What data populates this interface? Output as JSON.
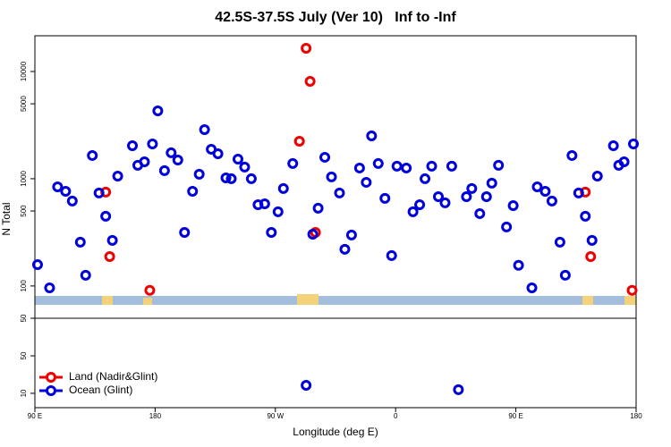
{
  "chart_data": [
    {
      "type": "scatter",
      "title": "42.5S-37.5S July (Ver 10)   Inf to -Inf",
      "y_label": "N Total",
      "log_y": true,
      "xlim": [
        90,
        540
      ],
      "ylim": [
        50,
        21544
      ],
      "yticks": [
        50,
        100,
        500,
        1000,
        5000,
        10000
      ],
      "series": [
        {
          "color": "#ee0000",
          "x": [
            143,
            146,
            176,
            293,
            296,
            288,
            300,
            502,
            506,
            537
          ],
          "values": [
            750,
            188,
            91,
            16480,
            8091,
            2239,
            316,
            750,
            188,
            91
          ]
        },
        {
          "color": "#0000dd",
          "x": [
            92,
            101,
            107,
            113,
            118,
            124,
            128,
            133,
            138,
            143,
            148,
            152,
            163,
            167,
            172,
            178,
            182,
            187,
            192,
            197,
            202,
            208,
            213,
            217,
            222,
            227,
            233,
            237,
            242,
            247,
            252,
            257,
            262,
            267,
            272,
            276,
            283,
            298,
            302,
            307,
            312,
            318,
            322,
            327,
            333,
            338,
            342,
            347,
            352,
            357,
            361,
            368,
            373,
            378,
            382,
            387,
            392,
            397,
            402,
            413,
            417,
            423,
            428,
            432,
            437,
            443,
            448,
            452,
            462,
            466,
            472,
            477,
            483,
            487,
            492,
            497,
            502,
            507,
            511,
            523,
            527,
            531,
            538
          ],
          "values": [
            158,
            96,
            841,
            764,
            619,
            256,
            126,
            1647,
            736,
            447,
            266,
            1059,
            2034,
            1334,
            1439,
            2113,
            4300,
            1189,
            1745,
            1496,
            316,
            764,
            1101,
            2873,
            1884,
            1711,
            1019,
            1000,
            1525,
            1284,
            1000,
            573,
            584,
            316,
            492,
            810,
            1386,
            304,
            531,
            1585,
            1040,
            736,
            220,
            299,
            1259,
            926,
            2512,
            1386,
            656,
            192,
            1309,
            1259,
            492,
            573,
            1000,
            1309,
            681,
            596,
            1309,
            681,
            810,
            473,
            681,
            909,
            1334,
            355,
            562,
            156,
            96,
            841,
            764,
            619,
            256,
            126,
            1647,
            736,
            447,
            266,
            1059,
            2034,
            1334,
            1439,
            2113
          ]
        }
      ]
    },
    {
      "type": "scatter",
      "x_label": "Longitude (deg E)",
      "log_y": true,
      "xlim": [
        90,
        540
      ],
      "ylim": [
        5.4,
        251
      ],
      "xticks": [
        {
          "value": 90,
          "label": "90 E"
        },
        180,
        {
          "value": 270,
          "label": "90 W"
        },
        {
          "value": 360,
          "label": "0"
        },
        {
          "value": 450,
          "label": "90 E"
        },
        {
          "value": 540,
          "label": "180"
        }
      ],
      "yticks": [
        10,
        50
      ],
      "legend": "bottom-left",
      "series": [
        {
          "name": "Land (Nadir&Glint)",
          "color": "#ee0000",
          "x": [],
          "values": []
        },
        {
          "name": "Ocean (Glint)",
          "color": "#0000dd",
          "x": [
            293,
            407
          ],
          "values": [
            14.1,
            11.7
          ]
        }
      ]
    }
  ]
}
